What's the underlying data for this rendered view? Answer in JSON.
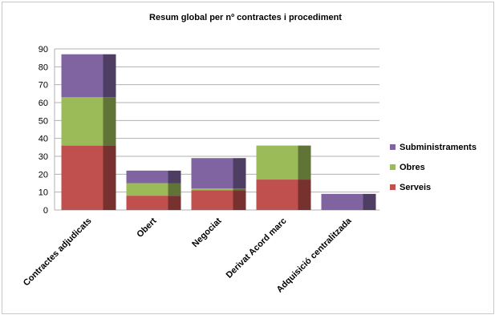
{
  "chart_data": {
    "type": "bar",
    "stacked": true,
    "style": "3d",
    "title": "Resum global per nº contractes i procediment",
    "categories": [
      "Contractes adjudicats",
      "Obert",
      "Negociat",
      "Derivat Acord marc",
      "Adquisició centralitzada"
    ],
    "series": [
      {
        "name": "Serveis",
        "color": "#c0504d",
        "values": [
          36,
          8,
          11,
          17,
          0
        ]
      },
      {
        "name": "Obres",
        "color": "#9bbb59",
        "values": [
          27,
          7,
          1,
          19,
          0
        ]
      },
      {
        "name": "Subministraments",
        "color": "#8064a2",
        "values": [
          24,
          7,
          17,
          0,
          9
        ]
      }
    ],
    "ylim": [
      0,
      90
    ],
    "yticks": [
      0,
      10,
      20,
      30,
      40,
      50,
      60,
      70,
      80,
      90
    ],
    "grid": true,
    "legend": "right"
  }
}
